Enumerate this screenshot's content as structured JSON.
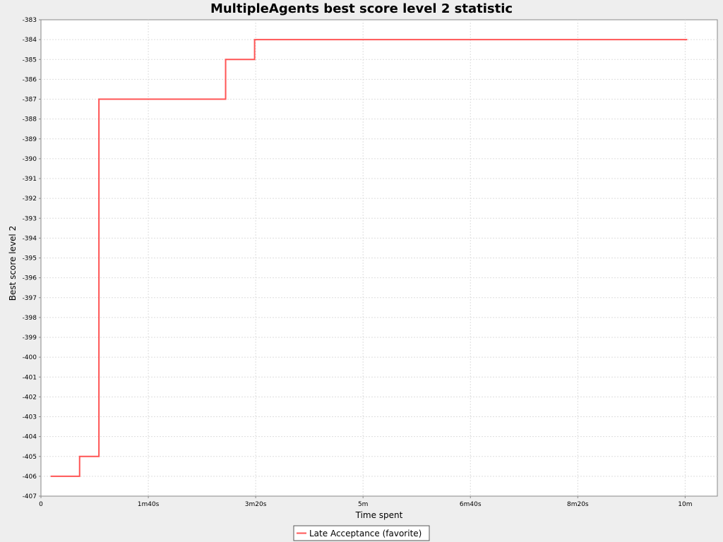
{
  "chart_data": {
    "type": "line",
    "title": "MultipleAgents best score level 2 statistic",
    "xlabel": "Time spent",
    "ylabel": "Best score level 2",
    "xlim": [
      0,
      630
    ],
    "ylim": [
      -407,
      -383
    ],
    "x_ticks": [
      {
        "value": 0,
        "label": "0"
      },
      {
        "value": 100,
        "label": "1m40s"
      },
      {
        "value": 200,
        "label": "3m20s"
      },
      {
        "value": 300,
        "label": "5m"
      },
      {
        "value": 400,
        "label": "6m40s"
      },
      {
        "value": 500,
        "label": "8m20s"
      },
      {
        "value": 600,
        "label": "10m"
      }
    ],
    "y_ticks": [
      -383,
      -384,
      -385,
      -386,
      -387,
      -388,
      -389,
      -390,
      -391,
      -392,
      -393,
      -394,
      -395,
      -396,
      -397,
      -398,
      -399,
      -400,
      -401,
      -402,
      -403,
      -404,
      -405,
      -406,
      -407
    ],
    "grid": true,
    "legend_position": "bottom",
    "series": [
      {
        "name": "Late Acceptance (favorite)",
        "color": "#ff5555",
        "step": true,
        "points": [
          [
            9,
            -406
          ],
          [
            36,
            -405
          ],
          [
            54,
            -387
          ],
          [
            172,
            -385
          ],
          [
            199,
            -384
          ],
          [
            602,
            -384
          ]
        ]
      }
    ]
  }
}
